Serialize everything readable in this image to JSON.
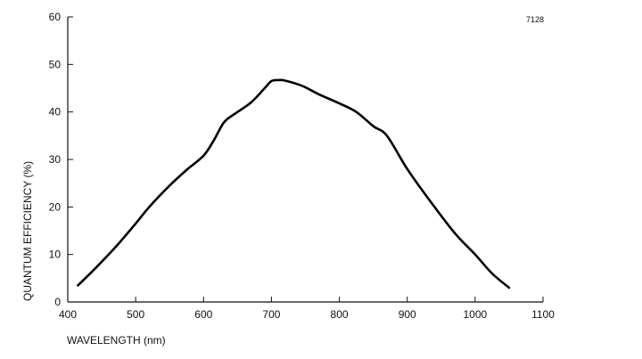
{
  "chart_data": {
    "type": "line",
    "title": "",
    "annotation": "7128",
    "xlabel": "WAVELENGTH (nm)",
    "ylabel": "QUANTUM EFFICIENCY (%)",
    "xlim": [
      400,
      1100
    ],
    "ylim": [
      0,
      60
    ],
    "x_ticks": [
      400,
      500,
      600,
      700,
      800,
      900,
      1000,
      1100
    ],
    "y_ticks": [
      0,
      10,
      20,
      30,
      40,
      50,
      60
    ],
    "grid": false,
    "series": [
      {
        "x": [
          415,
          440,
          470,
          500,
          520,
          550,
          575,
          600,
          615,
          630,
          645,
          670,
          690,
          700,
          710,
          720,
          745,
          770,
          800,
          825,
          850,
          870,
          900,
          935,
          970,
          1000,
          1025,
          1050
        ],
        "y": [
          3.5,
          7.0,
          11.5,
          16.5,
          20.0,
          24.5,
          27.8,
          30.8,
          34.0,
          37.8,
          39.5,
          42.0,
          45.0,
          46.5,
          46.7,
          46.6,
          45.5,
          43.7,
          41.8,
          40.0,
          37.0,
          35.0,
          28.0,
          21.0,
          14.5,
          10.0,
          6.0,
          3.0
        ]
      }
    ]
  }
}
